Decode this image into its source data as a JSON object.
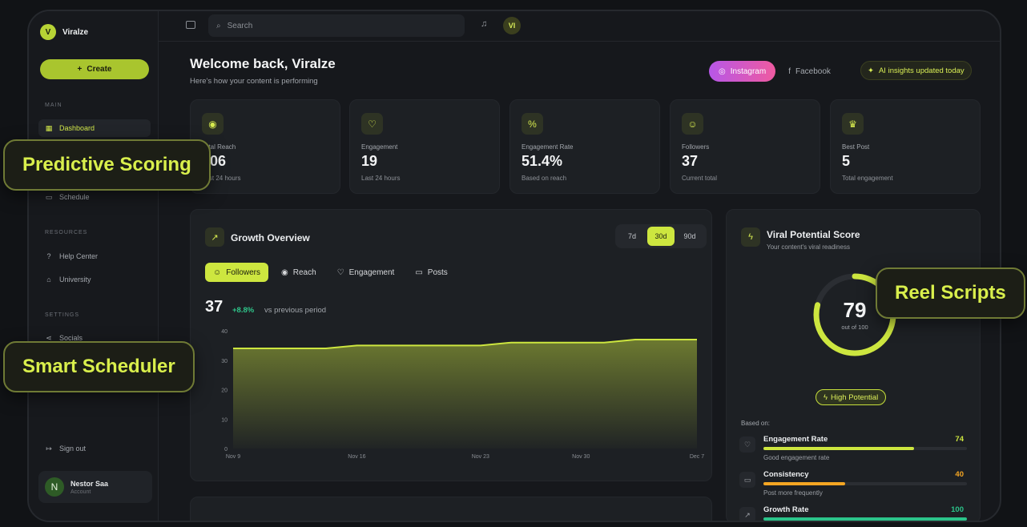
{
  "brand": {
    "logo_letter": "V",
    "name": "Viralze"
  },
  "sidebar": {
    "create_label": "Create",
    "main_title": "MAIN",
    "items": [
      {
        "label": "Dashboard",
        "icon": "grid-icon"
      },
      {
        "label": "Schedule",
        "icon": "calendar-icon"
      }
    ],
    "resources_title": "RESOURCES",
    "resources": [
      {
        "label": "Help Center",
        "icon": "help-icon"
      },
      {
        "label": "University",
        "icon": "graduation-icon"
      }
    ],
    "settings_title": "SETTINGS",
    "settings": [
      {
        "label": "Socials",
        "icon": "share-icon"
      }
    ],
    "signout_label": "Sign out",
    "account": {
      "initial": "N",
      "name": "Nestor Saa",
      "role": "Account"
    }
  },
  "topbar": {
    "search_placeholder": "Search",
    "user_initials": "VI"
  },
  "header": {
    "title": "Welcome back, Viralze",
    "subtitle": "Here's how your content is performing",
    "platforms": [
      "Instagram",
      "Facebook"
    ],
    "ai_badge": "AI insights updated today"
  },
  "stats": [
    {
      "label": "Total Reach",
      "value": "106",
      "sub": "Last 24 hours",
      "icon": "eye-icon"
    },
    {
      "label": "Engagement",
      "value": "19",
      "sub": "Last 24 hours",
      "icon": "heart-icon"
    },
    {
      "label": "Engagement Rate",
      "value": "51.4%",
      "sub": "Based on reach",
      "icon": "percent-icon"
    },
    {
      "label": "Followers",
      "value": "37",
      "sub": "Current total",
      "icon": "users-icon"
    },
    {
      "label": "Best Post",
      "value": "5",
      "sub": "Total engagement",
      "icon": "trophy-icon"
    }
  ],
  "growth": {
    "title": "Growth Overview",
    "ranges": [
      "7d",
      "30d",
      "90d"
    ],
    "active_range": "30d",
    "tabs": [
      "Followers",
      "Reach",
      "Engagement",
      "Posts"
    ],
    "value": "37",
    "delta": "+8.8%",
    "vs": "vs previous period"
  },
  "chart_data": {
    "type": "area",
    "x": [
      "Nov 9",
      "Nov 11",
      "Nov 13",
      "Nov 14",
      "Nov 16",
      "Nov 18",
      "Nov 20",
      "Nov 22",
      "Nov 23",
      "Nov 25",
      "Nov 27",
      "Nov 29",
      "Dec 1",
      "Dec 3",
      "Dec 5",
      "Dec 7"
    ],
    "series": [
      {
        "name": "Followers",
        "values": [
          34,
          34,
          34,
          34,
          35,
          35,
          35,
          35,
          35,
          36,
          36,
          36,
          36,
          37,
          37,
          37
        ]
      }
    ],
    "x_ticks": [
      "Nov 9",
      "Nov 16",
      "Nov 23",
      "Nov 30",
      "Dec 7"
    ],
    "y_ticks": [
      0,
      10,
      20,
      30,
      40
    ],
    "ylim": [
      0,
      40
    ],
    "color": "#cde63f"
  },
  "viral": {
    "title": "Viral Potential Score",
    "subtitle": "Your content's viral readiness",
    "score": "79",
    "score_fraction": 0.79,
    "out_of": "out of 100",
    "badge": "High Potential",
    "based_on": "Based on:",
    "factors": [
      {
        "name": "Engagement Rate",
        "value": "74",
        "percent": 74,
        "sub": "Good engagement rate",
        "color": "#cde63f",
        "icon": "heart-icon"
      },
      {
        "name": "Consistency",
        "value": "40",
        "percent": 40,
        "sub": "Post more frequently",
        "color": "#f5a623",
        "icon": "calendar-icon"
      },
      {
        "name": "Growth Rate",
        "value": "100",
        "percent": 100,
        "sub": "",
        "color": "#2bc48a",
        "icon": "trending-icon"
      }
    ]
  },
  "callouts": [
    "Predictive Scoring",
    "Reel Scripts",
    "Smart Scheduler"
  ]
}
